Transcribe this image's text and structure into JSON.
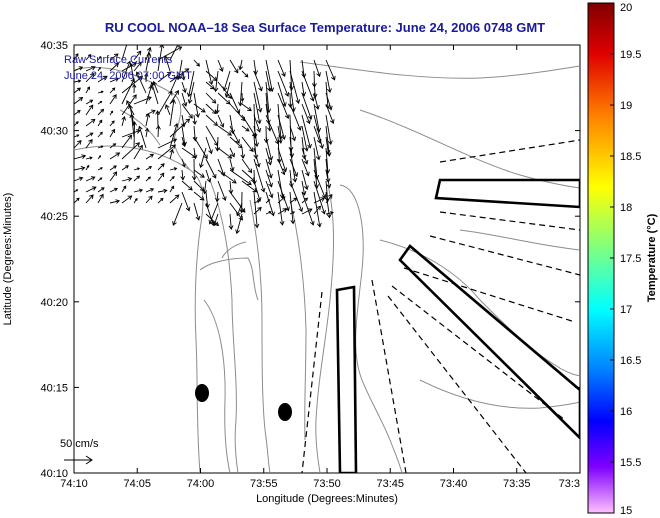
{
  "title": "RU COOL   NOAA–18  Sea Surface Temperature:  June 24, 2006 0748 GMT",
  "map": {
    "xlabel": "Longitude (Degrees:Minutes)",
    "ylabel": "Latitude (Degrees:Minutes)",
    "x_ticks": [
      "74:10",
      "74:05",
      "74:00",
      "73:55",
      "73:50",
      "73:45",
      "73:40",
      "73:35",
      "73:3"
    ],
    "y_ticks": [
      "40:35",
      "40:30",
      "40:25",
      "40:20",
      "40:15",
      "40:10"
    ],
    "overlay_label_1": "Raw Surface Currents",
    "overlay_label_2": "June 24, 2006 07:00 GMT",
    "scale_label": "50 cm/s"
  },
  "colorbar": {
    "label": "Temperature (°C)",
    "ticks": [
      "20",
      "19.5",
      "19",
      "18.5",
      "18",
      "17.5",
      "17",
      "16.5",
      "16",
      "15.5",
      "15"
    ],
    "stops": [
      "#800000",
      "#ff0000",
      "#ff8000",
      "#ffff00",
      "#80ff80",
      "#00ffff",
      "#0080ff",
      "#0000ff",
      "#8000ff",
      "#ff80ff"
    ]
  },
  "colors": {
    "title": "#1a1a9c",
    "contour": "#8c8c8c",
    "vectors": "#000000"
  }
}
